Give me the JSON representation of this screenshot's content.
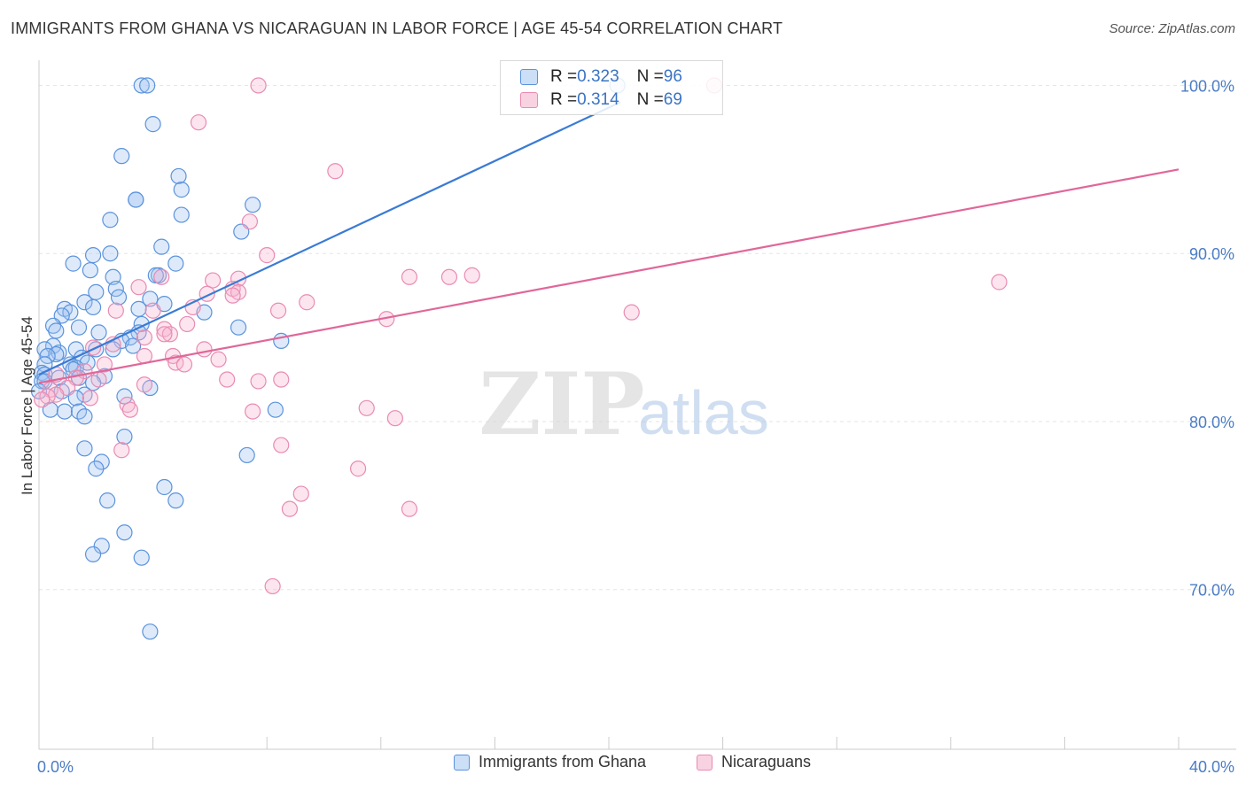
{
  "title": "IMMIGRANTS FROM GHANA VS NICARAGUAN IN LABOR FORCE | AGE 45-54 CORRELATION CHART",
  "source": "Source: ZipAtlas.com",
  "watermark": {
    "zip": "ZIP",
    "atlas": "atlas"
  },
  "colors": {
    "blue": "#3a7bd5",
    "blue_fill": "rgba(160,196,240,0.35)",
    "blue_stroke": "#5b93dc",
    "pink": "#e0679a",
    "pink_fill": "rgba(245,180,205,0.35)",
    "pink_stroke": "#e98bb2",
    "tick_label": "#4a7cc4",
    "grid": "#e6e6e6"
  },
  "stats": {
    "series1": {
      "r_label": "R = ",
      "r_value": "0.323",
      "n_label": "N = ",
      "n_value": "96"
    },
    "series2": {
      "r_label": "R = ",
      "r_value": "0.314",
      "n_label": "N = ",
      "n_value": "69"
    }
  },
  "legend": {
    "series1": "Immigrants from Ghana",
    "series2": "Nicaraguans"
  },
  "chart_data": {
    "type": "scatter",
    "title": "IMMIGRANTS FROM GHANA VS NICARAGUAN IN LABOR FORCE | AGE 45-54 CORRELATION CHART",
    "xlabel": "",
    "ylabel": "In Labor Force | Age 45-54",
    "xlim": [
      0,
      40
    ],
    "ylim": [
      60.5,
      101.5
    ],
    "x_tick_labels": [
      {
        "value": 0,
        "label": "0.0%"
      },
      {
        "value": 40,
        "label": "40.0%"
      }
    ],
    "y_tick_labels": [
      {
        "value": 70,
        "label": "70.0%"
      },
      {
        "value": 80,
        "label": "80.0%"
      },
      {
        "value": 90,
        "label": "90.0%"
      },
      {
        "value": 100,
        "label": "100.0%"
      }
    ],
    "grid": true,
    "series": [
      {
        "name": "Immigrants from Ghana",
        "color": "blue",
        "trend": {
          "x": [
            0,
            20.4
          ],
          "y": [
            82.8,
            99.0
          ]
        },
        "points": [
          [
            3.6,
            100
          ],
          [
            3.8,
            100
          ],
          [
            20.3,
            100
          ],
          [
            4.0,
            97.7
          ],
          [
            2.9,
            95.8
          ],
          [
            4.9,
            94.6
          ],
          [
            3.4,
            93.2
          ],
          [
            3.4,
            93.2
          ],
          [
            5.0,
            93.8
          ],
          [
            7.5,
            92.9
          ],
          [
            5.0,
            92.3
          ],
          [
            2.5,
            92.0
          ],
          [
            7.1,
            91.3
          ],
          [
            4.3,
            90.4
          ],
          [
            1.9,
            89.9
          ],
          [
            2.5,
            90.0
          ],
          [
            1.2,
            89.4
          ],
          [
            4.8,
            89.4
          ],
          [
            1.8,
            89.0
          ],
          [
            4.2,
            88.7
          ],
          [
            4.1,
            88.7
          ],
          [
            2.6,
            88.6
          ],
          [
            2.7,
            87.9
          ],
          [
            2.0,
            87.7
          ],
          [
            2.8,
            87.4
          ],
          [
            3.9,
            87.3
          ],
          [
            1.6,
            87.1
          ],
          [
            4.4,
            87.0
          ],
          [
            1.9,
            86.8
          ],
          [
            0.9,
            86.7
          ],
          [
            3.5,
            86.7
          ],
          [
            1.1,
            86.5
          ],
          [
            0.8,
            86.3
          ],
          [
            5.8,
            86.5
          ],
          [
            3.6,
            85.8
          ],
          [
            0.5,
            85.7
          ],
          [
            2.1,
            85.3
          ],
          [
            7.0,
            85.6
          ],
          [
            1.4,
            85.6
          ],
          [
            0.6,
            85.4
          ],
          [
            3.5,
            85.3
          ],
          [
            3.2,
            85.0
          ],
          [
            2.9,
            84.8
          ],
          [
            3.3,
            84.5
          ],
          [
            8.5,
            84.8
          ],
          [
            0.5,
            84.5
          ],
          [
            0.2,
            84.3
          ],
          [
            1.3,
            84.3
          ],
          [
            2.6,
            84.3
          ],
          [
            2.0,
            84.3
          ],
          [
            0.7,
            84.1
          ],
          [
            0.6,
            84.0
          ],
          [
            0.3,
            83.9
          ],
          [
            1.5,
            83.8
          ],
          [
            1.7,
            83.5
          ],
          [
            0.2,
            83.4
          ],
          [
            1.1,
            83.4
          ],
          [
            1.3,
            83.2
          ],
          [
            1.2,
            83.1
          ],
          [
            0.1,
            82.9
          ],
          [
            0.2,
            82.8
          ],
          [
            0.7,
            82.6
          ],
          [
            2.3,
            82.7
          ],
          [
            1.4,
            82.6
          ],
          [
            0.1,
            82.4
          ],
          [
            0.2,
            82.4
          ],
          [
            1.9,
            82.3
          ],
          [
            3.9,
            82.0
          ],
          [
            0.8,
            81.8
          ],
          [
            0.0,
            81.8
          ],
          [
            1.6,
            81.6
          ],
          [
            3.0,
            81.5
          ],
          [
            1.3,
            81.4
          ],
          [
            0.4,
            80.7
          ],
          [
            0.9,
            80.6
          ],
          [
            1.4,
            80.6
          ],
          [
            1.6,
            80.3
          ],
          [
            8.3,
            80.7
          ],
          [
            3.0,
            79.1
          ],
          [
            1.6,
            78.4
          ],
          [
            7.3,
            78.0
          ],
          [
            2.2,
            77.6
          ],
          [
            2.0,
            77.2
          ],
          [
            4.4,
            76.1
          ],
          [
            4.8,
            75.3
          ],
          [
            2.4,
            75.3
          ],
          [
            3.0,
            73.4
          ],
          [
            2.2,
            72.6
          ],
          [
            1.9,
            72.1
          ],
          [
            3.6,
            71.9
          ],
          [
            3.9,
            67.5
          ]
        ]
      },
      {
        "name": "Nicaraguans",
        "color": "pink",
        "trend": {
          "x": [
            0,
            40
          ],
          "y": [
            82.3,
            95.0
          ]
        },
        "points": [
          [
            7.7,
            100
          ],
          [
            23.7,
            100
          ],
          [
            5.6,
            97.8
          ],
          [
            10.4,
            94.9
          ],
          [
            7.4,
            91.9
          ],
          [
            8.0,
            89.9
          ],
          [
            13.0,
            88.6
          ],
          [
            14.4,
            88.6
          ],
          [
            15.2,
            88.7
          ],
          [
            33.7,
            88.3
          ],
          [
            6.1,
            88.4
          ],
          [
            7.0,
            88.5
          ],
          [
            4.3,
            88.6
          ],
          [
            3.5,
            88.0
          ],
          [
            6.8,
            87.9
          ],
          [
            7.0,
            87.7
          ],
          [
            6.8,
            87.5
          ],
          [
            5.9,
            87.6
          ],
          [
            9.4,
            87.1
          ],
          [
            5.4,
            86.8
          ],
          [
            2.7,
            86.6
          ],
          [
            4.0,
            86.6
          ],
          [
            8.4,
            86.6
          ],
          [
            20.8,
            86.5
          ],
          [
            12.2,
            86.1
          ],
          [
            5.2,
            85.8
          ],
          [
            4.4,
            85.5
          ],
          [
            4.6,
            85.2
          ],
          [
            3.7,
            85.0
          ],
          [
            4.4,
            85.2
          ],
          [
            2.6,
            84.6
          ],
          [
            1.9,
            84.4
          ],
          [
            5.8,
            84.3
          ],
          [
            3.7,
            83.9
          ],
          [
            4.7,
            83.9
          ],
          [
            6.3,
            83.7
          ],
          [
            4.8,
            83.5
          ],
          [
            5.1,
            83.4
          ],
          [
            2.3,
            83.4
          ],
          [
            1.6,
            83.0
          ],
          [
            0.6,
            82.8
          ],
          [
            1.3,
            82.6
          ],
          [
            2.1,
            82.5
          ],
          [
            6.6,
            82.5
          ],
          [
            7.7,
            82.4
          ],
          [
            8.5,
            82.5
          ],
          [
            3.7,
            82.2
          ],
          [
            1.0,
            82.0
          ],
          [
            0.4,
            81.9
          ],
          [
            0.6,
            81.6
          ],
          [
            1.8,
            81.4
          ],
          [
            0.3,
            81.5
          ],
          [
            0.1,
            81.3
          ],
          [
            3.1,
            81.0
          ],
          [
            3.2,
            80.7
          ],
          [
            11.5,
            80.8
          ],
          [
            7.5,
            80.6
          ],
          [
            12.5,
            80.2
          ],
          [
            8.5,
            78.6
          ],
          [
            2.9,
            78.3
          ],
          [
            11.2,
            77.2
          ],
          [
            9.2,
            75.7
          ],
          [
            8.8,
            74.8
          ],
          [
            13.0,
            74.8
          ],
          [
            8.2,
            70.2
          ]
        ]
      }
    ]
  }
}
